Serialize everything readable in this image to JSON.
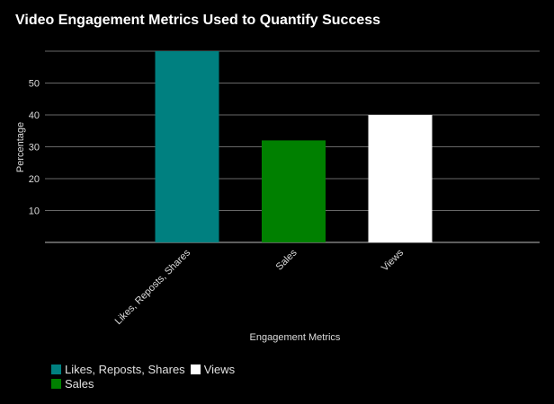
{
  "chart_data": {
    "type": "bar",
    "title": "Video Engagement Metrics Used to Quantify Success",
    "xlabel": "Engagement Metrics",
    "ylabel": "Percentage",
    "categories": [
      "Likes, Reposts, Shares",
      "Sales",
      "Views"
    ],
    "values": [
      60,
      32,
      40
    ],
    "colors": [
      "#008080",
      "#008000",
      "#ffffff"
    ],
    "yticks": [
      10,
      20,
      30,
      40,
      50
    ],
    "ylim": [
      0,
      60
    ],
    "grid": true,
    "legend": {
      "placement": "bottom-left",
      "rows": [
        [
          "Likes, Reposts, Shares",
          "Views"
        ],
        [
          "Sales"
        ]
      ]
    }
  }
}
